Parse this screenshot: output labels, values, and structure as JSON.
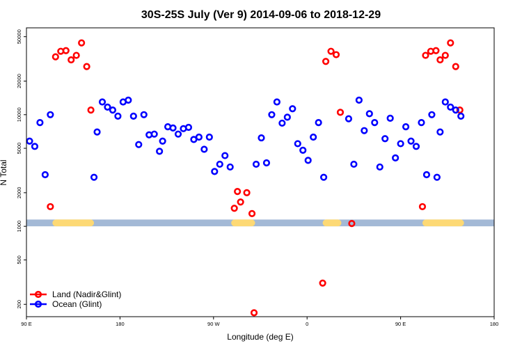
{
  "chart_data": {
    "type": "scatter",
    "title": "30S-25S July (Ver 9)   2014-09-06 to 2018-12-29",
    "xlabel": "Longitude (deg E)",
    "ylabel": "N Total",
    "y_scale": "log",
    "xlim": [
      90,
      540
    ],
    "ylim": [
      155,
      60000
    ],
    "x_ticks": [
      {
        "value": 90,
        "label": "90 E"
      },
      {
        "value": 180,
        "label": "180"
      },
      {
        "value": 270,
        "label": "90 W"
      },
      {
        "value": 360,
        "label": "0"
      },
      {
        "value": 450,
        "label": "90 E"
      },
      {
        "value": 540,
        "label": "180"
      }
    ],
    "y_ticks": [
      {
        "value": 200,
        "label": "200"
      },
      {
        "value": 500,
        "label": "500"
      },
      {
        "value": 1000,
        "label": "1000"
      },
      {
        "value": 2000,
        "label": "2000"
      },
      {
        "value": 5000,
        "label": "5000"
      },
      {
        "value": 10000,
        "label": "10000"
      },
      {
        "value": 20000,
        "label": "20000"
      },
      {
        "value": 50000,
        "label": "50000"
      }
    ],
    "grid": false,
    "legend_position": "bottom-left",
    "land_band": {
      "color": "#a3b9d6",
      "land_color": "#fdd975",
      "y_range": [
        1000,
        1150
      ],
      "land_segments": [
        [
          115,
          155
        ],
        [
          287,
          310
        ],
        [
          375,
          393
        ],
        [
          471,
          511
        ]
      ]
    },
    "series": [
      {
        "name": "Land (Nadir&Glint)",
        "color": "#ff0000",
        "points": [
          [
            113,
            1500
          ],
          [
            118,
            33000
          ],
          [
            123,
            37000
          ],
          [
            128,
            37500
          ],
          [
            133,
            31000
          ],
          [
            138,
            34000
          ],
          [
            143,
            44000
          ],
          [
            148,
            27000
          ],
          [
            152,
            11000
          ],
          [
            290,
            1450
          ],
          [
            293,
            2050
          ],
          [
            296,
            1650
          ],
          [
            302,
            2000
          ],
          [
            307,
            1300
          ],
          [
            309,
            168
          ],
          [
            375,
            310
          ],
          [
            378,
            30000
          ],
          [
            383,
            37000
          ],
          [
            388,
            34500
          ],
          [
            392,
            10500
          ],
          [
            403,
            1060
          ],
          [
            471,
            1500
          ],
          [
            474,
            34000
          ],
          [
            479,
            37000
          ],
          [
            484,
            37500
          ],
          [
            488,
            31000
          ],
          [
            493,
            34000
          ],
          [
            498,
            44000
          ],
          [
            503,
            27000
          ],
          [
            507,
            11000
          ]
        ]
      },
      {
        "name": "Ocean (Glint)",
        "color": "#0000ff",
        "points": [
          [
            93,
            5800
          ],
          [
            98,
            5200
          ],
          [
            103,
            8500
          ],
          [
            108,
            2900
          ],
          [
            113,
            10000
          ],
          [
            155,
            2750
          ],
          [
            158,
            7000
          ],
          [
            163,
            13000
          ],
          [
            168,
            11700
          ],
          [
            173,
            11000
          ],
          [
            178,
            9700
          ],
          [
            183,
            13000
          ],
          [
            188,
            13500
          ],
          [
            193,
            9700
          ],
          [
            198,
            5400
          ],
          [
            203,
            10000
          ],
          [
            208,
            6600
          ],
          [
            213,
            6700
          ],
          [
            218,
            4700
          ],
          [
            221,
            5800
          ],
          [
            226,
            7800
          ],
          [
            231,
            7600
          ],
          [
            236,
            6700
          ],
          [
            241,
            7500
          ],
          [
            246,
            7700
          ],
          [
            251,
            6000
          ],
          [
            256,
            6300
          ],
          [
            261,
            4900
          ],
          [
            266,
            6300
          ],
          [
            271,
            3100
          ],
          [
            276,
            3600
          ],
          [
            281,
            4300
          ],
          [
            286,
            3400
          ],
          [
            311,
            3600
          ],
          [
            316,
            6200
          ],
          [
            321,
            3700
          ],
          [
            326,
            10000
          ],
          [
            331,
            13000
          ],
          [
            336,
            8400
          ],
          [
            341,
            9500
          ],
          [
            346,
            11300
          ],
          [
            351,
            5500
          ],
          [
            356,
            4800
          ],
          [
            361,
            3900
          ],
          [
            366,
            6300
          ],
          [
            371,
            8500
          ],
          [
            376,
            2750
          ],
          [
            400,
            9200
          ],
          [
            405,
            3600
          ],
          [
            410,
            13500
          ],
          [
            415,
            7200
          ],
          [
            420,
            10200
          ],
          [
            425,
            8500
          ],
          [
            430,
            3400
          ],
          [
            435,
            6100
          ],
          [
            440,
            9300
          ],
          [
            445,
            4100
          ],
          [
            450,
            5500
          ],
          [
            455,
            7800
          ],
          [
            460,
            5800
          ],
          [
            465,
            5200
          ],
          [
            470,
            8500
          ],
          [
            475,
            2900
          ],
          [
            480,
            10000
          ],
          [
            485,
            2750
          ],
          [
            488,
            7000
          ],
          [
            493,
            13000
          ],
          [
            498,
            11700
          ],
          [
            503,
            11000
          ],
          [
            508,
            9700
          ]
        ]
      }
    ]
  }
}
